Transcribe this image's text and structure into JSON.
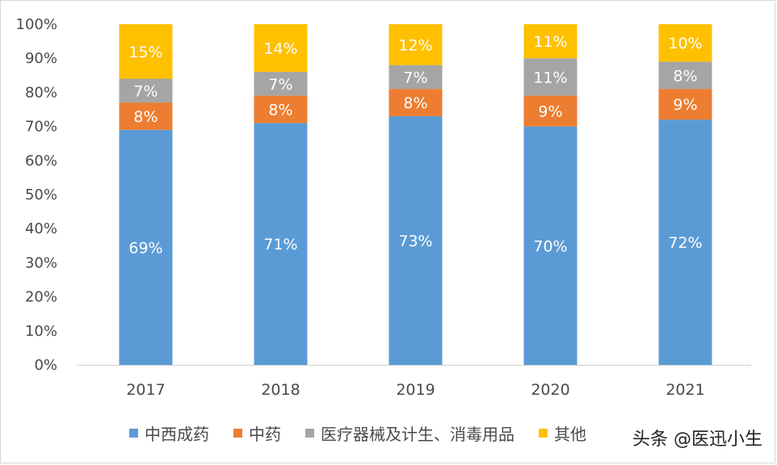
{
  "chart_data": {
    "type": "bar",
    "stacked": true,
    "percent": true,
    "title": "",
    "xlabel": "",
    "ylabel": "",
    "ylim": [
      0,
      100
    ],
    "yticks": [
      "0%",
      "10%",
      "20%",
      "30%",
      "40%",
      "50%",
      "60%",
      "70%",
      "80%",
      "90%",
      "100%"
    ],
    "categories": [
      "2017",
      "2018",
      "2019",
      "2020",
      "2021"
    ],
    "series": [
      {
        "name": "中西成药",
        "color": "#5b9bd5",
        "values": [
          69,
          71,
          73,
          70,
          72
        ],
        "labels": [
          "69%",
          "71%",
          "73%",
          "70%",
          "72%"
        ]
      },
      {
        "name": "中药",
        "color": "#ed7d31",
        "values": [
          8,
          8,
          8,
          9,
          9
        ],
        "labels": [
          "8%",
          "8%",
          "8%",
          "9%",
          "9%"
        ]
      },
      {
        "name": "医疗器械及计生、消毒用品",
        "color": "#a5a5a5",
        "values": [
          7,
          7,
          7,
          11,
          8
        ],
        "labels": [
          "7%",
          "7%",
          "7%",
          "11%",
          "8%"
        ]
      },
      {
        "name": "其他",
        "color": "#ffc000",
        "values": [
          15,
          14,
          12,
          11,
          10
        ],
        "labels": [
          "15%",
          "14%",
          "12%",
          "11%",
          "10%"
        ]
      }
    ],
    "grid": false,
    "legend": "bottom"
  },
  "watermark": "头条 @医迅小生"
}
